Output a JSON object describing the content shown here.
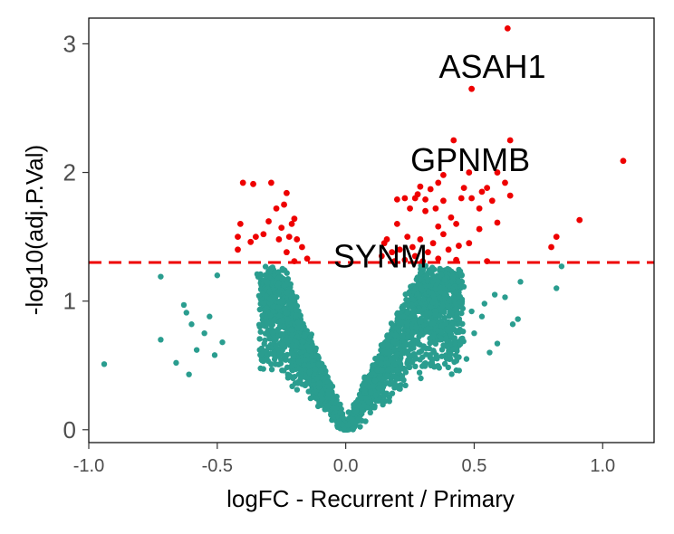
{
  "chart_data": {
    "type": "scatter",
    "title": "",
    "xlabel": "logFC - Recurrent / Primary",
    "ylabel": "-log10(adj.P.Val)",
    "xlim": [
      -1.0,
      1.2
    ],
    "ylim": [
      -0.1,
      3.2
    ],
    "x_ticks": [
      -1.0,
      -0.5,
      0.0,
      0.5,
      1.0
    ],
    "x_tick_labels": [
      "-1.0",
      "-0.5",
      "0.0",
      "0.5",
      "1.0"
    ],
    "y_ticks": [
      0,
      1,
      2,
      3
    ],
    "y_tick_labels": [
      "0",
      "1",
      "2",
      "3"
    ],
    "grid": false,
    "legend": "none",
    "threshold": {
      "y": 1.3,
      "style": "dashed",
      "color": "#ee0000"
    },
    "colors": {
      "significant": "#ee0000",
      "not_significant": "#2a9d8f"
    },
    "annotations": [
      {
        "text": "ASAH1",
        "x": 0.62,
        "y": 3.1
      },
      {
        "text": "GPNMB",
        "x": 0.64,
        "y": 2.25
      },
      {
        "text": "SYNM",
        "x": 0.29,
        "y": 1.5
      }
    ],
    "significant_points": [
      {
        "x": 0.63,
        "y": 3.12
      },
      {
        "x": 0.49,
        "y": 2.65
      },
      {
        "x": 0.64,
        "y": 2.25
      },
      {
        "x": 0.42,
        "y": 2.25
      },
      {
        "x": 1.08,
        "y": 2.09
      },
      {
        "x": 0.59,
        "y": 2.0
      },
      {
        "x": 0.48,
        "y": 2.0
      },
      {
        "x": 0.38,
        "y": 1.98
      },
      {
        "x": 0.36,
        "y": 1.92
      },
      {
        "x": 0.62,
        "y": 1.92
      },
      {
        "x": 0.55,
        "y": 1.88
      },
      {
        "x": 0.29,
        "y": 1.89
      },
      {
        "x": 0.46,
        "y": 1.88
      },
      {
        "x": 0.33,
        "y": 1.87
      },
      {
        "x": 0.53,
        "y": 1.85
      },
      {
        "x": 0.64,
        "y": 1.82
      },
      {
        "x": 0.28,
        "y": 1.83
      },
      {
        "x": 0.27,
        "y": 1.8
      },
      {
        "x": 0.23,
        "y": 1.8
      },
      {
        "x": 0.45,
        "y": 1.8
      },
      {
        "x": 0.49,
        "y": 1.8
      },
      {
        "x": 0.31,
        "y": 1.79
      },
      {
        "x": 0.2,
        "y": 1.79
      },
      {
        "x": 0.38,
        "y": 1.78
      },
      {
        "x": 0.57,
        "y": 1.78
      },
      {
        "x": 0.52,
        "y": 1.72
      },
      {
        "x": 0.35,
        "y": 1.72
      },
      {
        "x": 0.25,
        "y": 1.72
      },
      {
        "x": 0.31,
        "y": 1.7
      },
      {
        "x": 0.41,
        "y": 1.65
      },
      {
        "x": 0.91,
        "y": 1.63
      },
      {
        "x": 0.59,
        "y": 1.61
      },
      {
        "x": 0.43,
        "y": 1.6
      },
      {
        "x": 0.2,
        "y": 1.6
      },
      {
        "x": 0.36,
        "y": 1.58
      },
      {
        "x": 0.52,
        "y": 1.56
      },
      {
        "x": 0.38,
        "y": 1.52
      },
      {
        "x": 0.24,
        "y": 1.5
      },
      {
        "x": 0.29,
        "y": 1.48
      },
      {
        "x": 0.16,
        "y": 1.48
      },
      {
        "x": 0.82,
        "y": 1.5
      },
      {
        "x": 0.34,
        "y": 1.45
      },
      {
        "x": 0.48,
        "y": 1.45
      },
      {
        "x": 0.15,
        "y": 1.45
      },
      {
        "x": 0.44,
        "y": 1.43
      },
      {
        "x": 0.8,
        "y": 1.42
      },
      {
        "x": 0.26,
        "y": 1.42
      },
      {
        "x": 0.4,
        "y": 1.4
      },
      {
        "x": 0.21,
        "y": 1.4
      },
      {
        "x": 0.32,
        "y": 1.38
      },
      {
        "x": 0.18,
        "y": 1.38
      },
      {
        "x": 0.14,
        "y": 1.35
      },
      {
        "x": 0.27,
        "y": 1.35
      },
      {
        "x": 0.36,
        "y": 1.33
      },
      {
        "x": 0.23,
        "y": 1.32
      },
      {
        "x": 0.55,
        "y": 1.31
      },
      {
        "x": 0.43,
        "y": 1.32
      },
      {
        "x": 0.19,
        "y": 1.31
      },
      {
        "x": 0.3,
        "y": 1.31
      },
      {
        "x": -0.4,
        "y": 1.92
      },
      {
        "x": -0.36,
        "y": 1.91
      },
      {
        "x": -0.29,
        "y": 1.92
      },
      {
        "x": -0.23,
        "y": 1.84
      },
      {
        "x": -0.24,
        "y": 1.75
      },
      {
        "x": -0.27,
        "y": 1.72
      },
      {
        "x": -0.2,
        "y": 1.64
      },
      {
        "x": -0.21,
        "y": 1.6
      },
      {
        "x": -0.41,
        "y": 1.6
      },
      {
        "x": -0.3,
        "y": 1.62
      },
      {
        "x": -0.25,
        "y": 1.57
      },
      {
        "x": -0.32,
        "y": 1.52
      },
      {
        "x": -0.35,
        "y": 1.5
      },
      {
        "x": -0.42,
        "y": 1.5
      },
      {
        "x": -0.22,
        "y": 1.5
      },
      {
        "x": -0.19,
        "y": 1.48
      },
      {
        "x": -0.26,
        "y": 1.48
      },
      {
        "x": -0.37,
        "y": 1.46
      },
      {
        "x": -0.17,
        "y": 1.42
      },
      {
        "x": -0.42,
        "y": 1.4
      },
      {
        "x": -0.23,
        "y": 1.38
      },
      {
        "x": -0.15,
        "y": 1.33
      },
      {
        "x": -0.2,
        "y": 1.31
      }
    ],
    "nonsignificant_outliers": [
      {
        "x": -0.94,
        "y": 0.51
      },
      {
        "x": -0.72,
        "y": 0.7
      },
      {
        "x": -0.72,
        "y": 1.19
      },
      {
        "x": -0.66,
        "y": 0.52
      },
      {
        "x": -0.63,
        "y": 0.97
      },
      {
        "x": -0.62,
        "y": 0.91
      },
      {
        "x": -0.61,
        "y": 0.43
      },
      {
        "x": -0.6,
        "y": 0.82
      },
      {
        "x": -0.58,
        "y": 0.62
      },
      {
        "x": -0.55,
        "y": 0.75
      },
      {
        "x": -0.53,
        "y": 0.88
      },
      {
        "x": -0.5,
        "y": 1.2
      },
      {
        "x": -0.51,
        "y": 0.58
      },
      {
        "x": -0.48,
        "y": 0.68
      },
      {
        "x": 0.84,
        "y": 1.27
      },
      {
        "x": 0.82,
        "y": 1.1
      },
      {
        "x": 0.68,
        "y": 1.15
      },
      {
        "x": 0.67,
        "y": 0.86
      },
      {
        "x": 0.65,
        "y": 0.82
      },
      {
        "x": 0.62,
        "y": 1.03
      },
      {
        "x": 0.58,
        "y": 1.05
      },
      {
        "x": 0.59,
        "y": 0.67
      },
      {
        "x": 0.56,
        "y": 0.6
      },
      {
        "x": 0.54,
        "y": 0.98
      },
      {
        "x": 0.53,
        "y": 0.88
      },
      {
        "x": 0.5,
        "y": 0.75
      },
      {
        "x": 0.49,
        "y": 0.92
      },
      {
        "x": 0.47,
        "y": 0.55
      }
    ]
  }
}
